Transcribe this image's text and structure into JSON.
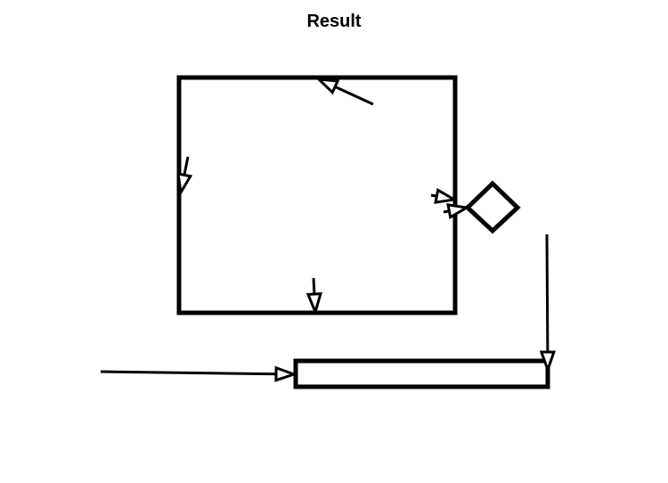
{
  "title": "Result",
  "colors": {
    "stroke": "#000000",
    "background": "#ffffff"
  },
  "shapes": [
    {
      "kind": "rectangle",
      "name": "large-square"
    },
    {
      "kind": "diamond",
      "name": "small-diamond"
    },
    {
      "kind": "rectangle",
      "name": "wide-bar"
    }
  ],
  "arrows": [
    {
      "name": "arrow-top-edge",
      "head": "open-triangle"
    },
    {
      "name": "arrow-left-edge",
      "head": "open-triangle"
    },
    {
      "name": "arrow-bottom-edge",
      "head": "open-triangle"
    },
    {
      "name": "arrow-right-edge-upper",
      "head": "open-triangle"
    },
    {
      "name": "arrow-right-edge-lower",
      "head": "open-triangle"
    },
    {
      "name": "arrow-into-bar-left",
      "head": "open-triangle"
    },
    {
      "name": "arrow-into-bar-top",
      "head": "open-triangle"
    }
  ]
}
